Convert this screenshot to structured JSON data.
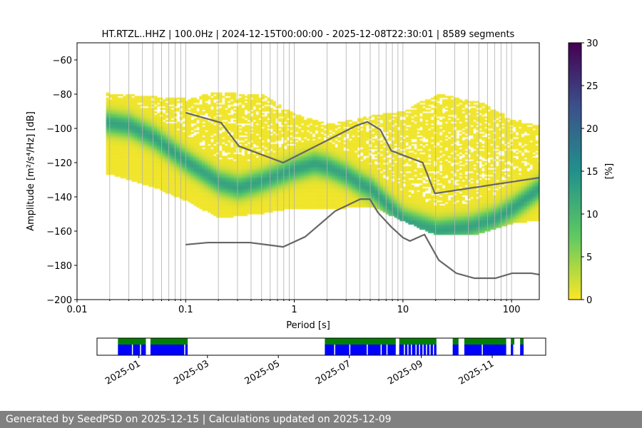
{
  "chart_data": {
    "type": "heatmap",
    "title": "HT.RTZL..HHZ | 100.0Hz | 2024-12-15T00:00:00 - 2025-12-08T22:30:01 | 8589 segments",
    "xlabel": "Period [s]",
    "ylabel": "Amplitude [m²/s⁴/Hz] [dB]",
    "xscale": "log",
    "xlim": [
      0.01,
      180
    ],
    "ylim": [
      -200,
      -50
    ],
    "xticks": [
      {
        "v": 0.01,
        "label": "0.01"
      },
      {
        "v": 0.1,
        "label": "0.1"
      },
      {
        "v": 1,
        "label": "1"
      },
      {
        "v": 10,
        "label": "10"
      },
      {
        "v": 100,
        "label": "100"
      }
    ],
    "yticks": [
      {
        "v": -60,
        "label": "−60"
      },
      {
        "v": -80,
        "label": "−80"
      },
      {
        "v": -100,
        "label": "−100"
      },
      {
        "v": -120,
        "label": "−120"
      },
      {
        "v": -140,
        "label": "−140"
      },
      {
        "v": -160,
        "label": "−160"
      },
      {
        "v": -180,
        "label": "−180"
      },
      {
        "v": -200,
        "label": "−200"
      }
    ],
    "grid": "vertical minor log",
    "colorbar": {
      "label": "[%]",
      "range": [
        0,
        30
      ],
      "ticks": [
        "0",
        "5",
        "10",
        "15",
        "20",
        "25",
        "30"
      ],
      "colormap": "viridis_r"
    },
    "density_model": {
      "period_range": [
        0.0185,
        180
      ],
      "mode_curve": [
        [
          0.0185,
          -97
        ],
        [
          0.03,
          -99
        ],
        [
          0.05,
          -106
        ],
        [
          0.1,
          -120
        ],
        [
          0.2,
          -132
        ],
        [
          0.3,
          -135
        ],
        [
          0.5,
          -131
        ],
        [
          1,
          -124
        ],
        [
          1.5,
          -121
        ],
        [
          2,
          -123
        ],
        [
          3,
          -128
        ],
        [
          4,
          -133
        ],
        [
          5,
          -136
        ],
        [
          7,
          -145
        ],
        [
          10,
          -154
        ],
        [
          20,
          -160
        ],
        [
          40,
          -158
        ],
        [
          70,
          -153
        ],
        [
          100,
          -147
        ],
        [
          180,
          -135
        ]
      ],
      "upper_envelope": [
        [
          0.0185,
          -80
        ],
        [
          0.1,
          -83
        ],
        [
          0.2,
          -79
        ],
        [
          0.5,
          -81
        ],
        [
          1,
          -92
        ],
        [
          2,
          -98
        ],
        [
          5,
          -93
        ],
        [
          10,
          -90
        ],
        [
          20,
          -80
        ],
        [
          50,
          -85
        ],
        [
          100,
          -95
        ],
        [
          180,
          -99
        ]
      ],
      "lower_envelope": [
        [
          0.0185,
          -127
        ],
        [
          0.05,
          -135
        ],
        [
          0.1,
          -143
        ],
        [
          0.2,
          -153
        ],
        [
          0.5,
          -150
        ],
        [
          1,
          -147
        ],
        [
          3,
          -147
        ],
        [
          5,
          -146
        ],
        [
          10,
          -155
        ],
        [
          20,
          -163
        ],
        [
          50,
          -162
        ],
        [
          100,
          -156
        ],
        [
          180,
          -154
        ]
      ],
      "peak_percent": 12
    },
    "series": [
      {
        "name": "NHNM",
        "color": "#666666",
        "points": [
          [
            0.1,
            -90.8
          ],
          [
            0.212,
            -96.7
          ],
          [
            0.31,
            -110.4
          ],
          [
            0.79,
            -120
          ],
          [
            3.75,
            -98.3
          ],
          [
            4.7,
            -96.2
          ],
          [
            6.2,
            -100.8
          ],
          [
            7.8,
            -113
          ],
          [
            15.2,
            -120
          ],
          [
            19.7,
            -138
          ],
          [
            180,
            -128.8
          ]
        ]
      },
      {
        "name": "NLNM",
        "color": "#666666",
        "points": [
          [
            0.1,
            -167.9
          ],
          [
            0.16,
            -166.7
          ],
          [
            0.39,
            -166.7
          ],
          [
            0.79,
            -169.2
          ],
          [
            1.26,
            -163.3
          ],
          [
            2.38,
            -148.3
          ],
          [
            4.05,
            -141.3
          ],
          [
            4.96,
            -141.3
          ],
          [
            5.9,
            -149.2
          ],
          [
            7.8,
            -157.5
          ],
          [
            10,
            -163.8
          ],
          [
            11.6,
            -165.8
          ],
          [
            15.8,
            -162
          ],
          [
            21.4,
            -177
          ],
          [
            31,
            -184.6
          ],
          [
            45.5,
            -187.5
          ],
          [
            71,
            -187.5
          ],
          [
            101,
            -184.6
          ],
          [
            152,
            -184.6
          ],
          [
            180,
            -185.4
          ]
        ]
      }
    ],
    "availability": {
      "xlim": [
        "2024-11-26",
        "2025-12-17"
      ],
      "xticks": [
        "2025-01",
        "2025-03",
        "2025-05",
        "2025-07",
        "2025-09",
        "2025-11"
      ],
      "data_color": "#008000",
      "processed_color": "#0000ff",
      "segments": [
        [
          "2024-12-14",
          "2025-01-07"
        ],
        [
          "2025-01-11",
          "2025-02-12"
        ],
        [
          "2025-06-10",
          "2025-08-10"
        ],
        [
          "2025-08-13",
          "2025-09-14"
        ],
        [
          "2025-09-28",
          "2025-10-03"
        ],
        [
          "2025-10-08",
          "2025-11-13"
        ],
        [
          "2025-11-17",
          "2025-11-20"
        ],
        [
          "2025-11-25",
          "2025-11-28"
        ]
      ],
      "gaps": [
        "2024-12-26",
        "2025-01-02",
        "2025-02-09",
        "2025-06-18",
        "2025-07-01",
        "2025-07-16",
        "2025-07-28",
        "2025-08-02",
        "2025-08-17",
        "2025-08-20",
        "2025-08-23",
        "2025-08-27",
        "2025-08-30",
        "2025-09-02",
        "2025-09-05",
        "2025-09-08",
        "2025-09-11",
        "2025-10-23",
        "2025-11-19"
      ]
    }
  },
  "footer": {
    "text": "Generated by SeedPSD on 2025-12-15 | Calculations updated on 2025-12-09"
  }
}
